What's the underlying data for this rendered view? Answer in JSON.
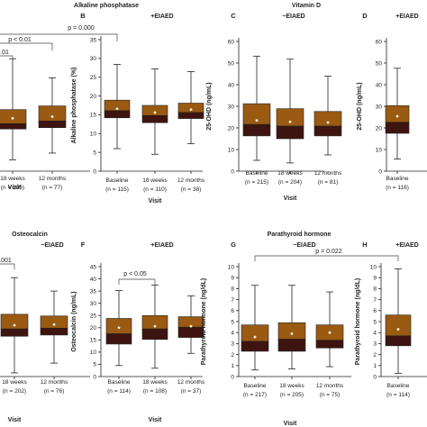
{
  "colors": {
    "upper_box": "#9a5a12",
    "lower_box": "#3e1410",
    "line": "#222222",
    "mean_marker": "#f4f1dc"
  },
  "chart_data": [
    {
      "id": "A_alkaline_phosphatase_minus",
      "type": "box",
      "panel_letter": "",
      "group_label": "",
      "title": "Alkaline phosphatase",
      "ylabel": "",
      "xlabel": "Visit",
      "ylim": [
        0,
        35
      ],
      "yticks": [],
      "categories": [
        {
          "top": "18 weeks",
          "bottom": "(n = 206)"
        },
        {
          "top": "12 months",
          "bottom": "(n = 77)"
        }
      ],
      "boxes": [
        {
          "whisker_low": 3.4,
          "q1": 12.6,
          "median": 14.2,
          "q3": 18.4,
          "whisker_high": 33.6,
          "mean": 15.8
        },
        {
          "whisker_low": 5.4,
          "q1": 13.0,
          "median": 15.0,
          "q3": 19.5,
          "whisker_high": 27.9,
          "mean": 16.3
        }
      ],
      "annotations": [
        {
          "text": "p = 0.000"
        },
        {
          "text": "p < 0.01"
        },
        {
          "text": ".01"
        }
      ]
    },
    {
      "id": "B_alkaline_phosphatase_plus",
      "type": "box",
      "panel_letter": "B",
      "group_label": "+EIAED",
      "title": "",
      "ylabel": "Alkaline phosphatase (%)",
      "xlabel": "Visit",
      "ylim": [
        0,
        35
      ],
      "yticks": [
        0,
        5,
        10,
        15,
        20,
        25,
        30,
        35
      ],
      "categories": [
        {
          "top": "Baseline",
          "bottom": "(n = 115)"
        },
        {
          "top": "18 weeks",
          "bottom": "(n = 110)"
        },
        {
          "top": "12 months",
          "bottom": "(n = 38)"
        }
      ],
      "boxes": [
        {
          "whisker_low": 6.0,
          "q1": 14.2,
          "median": 16.1,
          "q3": 18.9,
          "whisker_high": 28.4,
          "mean": 16.6
        },
        {
          "whisker_low": 4.5,
          "q1": 12.9,
          "median": 14.8,
          "q3": 17.5,
          "whisker_high": 27.2,
          "mean": 15.6
        },
        {
          "whisker_low": 7.3,
          "q1": 14.0,
          "median": 15.6,
          "q3": 18.1,
          "whisker_high": 26.5,
          "mean": 16.4
        }
      ],
      "annotations": []
    },
    {
      "id": "C_vitamin_d_minus",
      "type": "box",
      "panel_letter": "C",
      "group_label": "−EIAED",
      "title": "Vitamin D",
      "ylabel": "25-OHD (ng/mL)",
      "xlabel": "Visit",
      "ylim": [
        0,
        60
      ],
      "yticks": [
        0,
        10,
        20,
        30,
        40,
        50,
        60
      ],
      "categories": [
        {
          "top": "Baseline",
          "bottom": "(n = 215)"
        },
        {
          "top": "18 weeks",
          "bottom": "(n = 204)"
        },
        {
          "top": "12 months",
          "bottom": "(n = 81)"
        }
      ],
      "boxes": [
        {
          "whisker_low": 5.0,
          "q1": 16.3,
          "median": 21.6,
          "q3": 31.2,
          "whisker_high": 53.2,
          "mean": 23.5
        },
        {
          "whisker_low": 3.8,
          "q1": 15.0,
          "median": 20.8,
          "q3": 28.9,
          "whisker_high": 51.8,
          "mean": 22.8
        },
        {
          "whisker_low": 7.5,
          "q1": 16.3,
          "median": 20.8,
          "q3": 27.6,
          "whisker_high": 43.9,
          "mean": 22.5
        }
      ],
      "annotations": []
    },
    {
      "id": "D_vitamin_d_plus",
      "type": "box",
      "panel_letter": "D",
      "group_label": "+EIAED",
      "title": "",
      "ylabel": "25-OHD (ng/mL)",
      "xlabel": "",
      "ylim": [
        0,
        60
      ],
      "yticks": [
        0,
        10,
        20,
        30,
        40,
        50,
        60
      ],
      "categories": [
        {
          "top": "Baseline",
          "bottom": "(n = 116)"
        }
      ],
      "boxes": [
        {
          "whisker_low": 5.6,
          "q1": 17.5,
          "median": 22.6,
          "q3": 30.3,
          "whisker_high": 47.6,
          "mean": 25.4
        }
      ],
      "annotations": []
    },
    {
      "id": "E_osteocalcin_minus",
      "type": "box",
      "panel_letter": "",
      "group_label": "−EIAED",
      "title": "Osteocalcin",
      "ylabel": "",
      "xlabel": "Visit",
      "ylim": [
        0,
        45
      ],
      "yticks": [],
      "categories": [
        {
          "top": "18 weeks",
          "bottom": "(n = 202)"
        },
        {
          "top": "12 months",
          "bottom": "(n = 76)"
        }
      ],
      "boxes": [
        {
          "whisker_low": 1.5,
          "q1": 16.5,
          "median": 19.5,
          "q3": 25.5,
          "whisker_high": 40.5,
          "mean": 21.0
        },
        {
          "whisker_low": 5.5,
          "q1": 17.0,
          "median": 19.8,
          "q3": 24.8,
          "whisker_high": 35.0,
          "mean": 21.3
        }
      ],
      "annotations": [
        {
          "text": ".001"
        }
      ]
    },
    {
      "id": "F_osteocalcin_plus",
      "type": "box",
      "panel_letter": "F",
      "group_label": "+EIAED",
      "title": "",
      "ylabel": "Osteocalcin (ng/mL)",
      "xlabel": "Visit",
      "ylim": [
        0,
        45
      ],
      "yticks": [
        0,
        5,
        10,
        15,
        20,
        25,
        30,
        35,
        40,
        45
      ],
      "categories": [
        {
          "top": "Baseline",
          "bottom": "(n = 114)"
        },
        {
          "top": "18 weeks",
          "bottom": "(n = 108)"
        },
        {
          "top": "12 months",
          "bottom": "(n = 37)"
        }
      ],
      "boxes": [
        {
          "whisker_low": 4.5,
          "q1": 13.3,
          "median": 17.5,
          "q3": 23.8,
          "whisker_high": 35.2,
          "mean": 20.0
        },
        {
          "whisker_low": 3.4,
          "q1": 15.2,
          "median": 19.5,
          "q3": 25.0,
          "whisker_high": 37.5,
          "mean": 20.6
        },
        {
          "whisker_low": 9.5,
          "q1": 16.0,
          "median": 20.2,
          "q3": 24.5,
          "whisker_high": 33.0,
          "mean": 20.6
        }
      ],
      "annotations": [
        {
          "text": "p < 0.05"
        }
      ]
    },
    {
      "id": "G_parathyroid_minus",
      "type": "box",
      "panel_letter": "G",
      "group_label": "−EIAED",
      "title": "Parathyroid hormone",
      "ylabel": "Parathyroid hormone (ng/dL)",
      "xlabel": "Visit",
      "ylim": [
        0,
        10
      ],
      "yticks": [
        0,
        1,
        2,
        3,
        4,
        5,
        6,
        7,
        8,
        9,
        10
      ],
      "categories": [
        {
          "top": "Baseline",
          "bottom": "(n = 217)"
        },
        {
          "top": "18 weeks",
          "bottom": "(n = 205)"
        },
        {
          "top": "12 months",
          "bottom": "(n = 75)"
        }
      ],
      "boxes": [
        {
          "whisker_low": 0.6,
          "q1": 2.3,
          "median": 3.2,
          "q3": 4.7,
          "whisker_high": 8.3,
          "mean": 3.6
        },
        {
          "whisker_low": 0.7,
          "q1": 2.3,
          "median": 3.4,
          "q3": 4.9,
          "whisker_high": 8.3,
          "mean": 3.9
        },
        {
          "whisker_low": 0.9,
          "q1": 2.6,
          "median": 3.3,
          "q3": 4.7,
          "whisker_high": 7.7,
          "mean": 4.0
        }
      ],
      "annotations": [
        {
          "text": "p = 0.022"
        }
      ]
    },
    {
      "id": "H_parathyroid_plus",
      "type": "box",
      "panel_letter": "H",
      "group_label": "+EIAED",
      "title": "",
      "ylabel": "Parathyroid hormone (ng/dL)",
      "xlabel": "",
      "ylim": [
        0,
        10
      ],
      "yticks": [
        0,
        1,
        2,
        3,
        4,
        5,
        6,
        7,
        8,
        9,
        10
      ],
      "categories": [
        {
          "top": "Baseline",
          "bottom": "(n = 114)"
        }
      ],
      "boxes": [
        {
          "whisker_low": 0.3,
          "q1": 2.8,
          "median": 3.7,
          "q3": 5.6,
          "whisker_high": 9.8,
          "mean": 4.3
        }
      ],
      "annotations": []
    }
  ]
}
